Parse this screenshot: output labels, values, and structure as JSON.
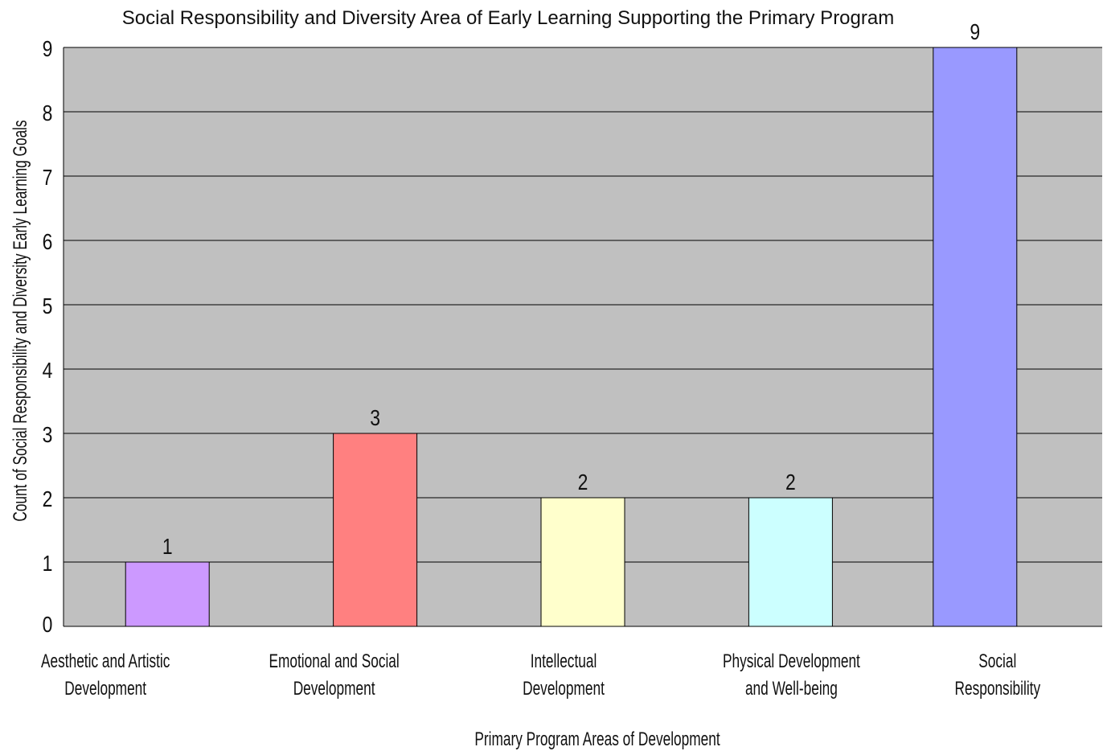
{
  "chart_data": {
    "type": "bar",
    "title": "Social Responsibility and Diversity Area of Early Learning Supporting the Primary Program",
    "xlabel": "Primary Program Areas of Development",
    "ylabel": "Count of Social Responsibility and Diversity Early Learning Goals",
    "categories": [
      [
        "Aesthetic and Artistic",
        "Development"
      ],
      [
        "Emotional and Social",
        "Development"
      ],
      [
        "Intellectual",
        "Development"
      ],
      [
        "Physical Development",
        "and Well-being"
      ],
      [
        "Social",
        "Responsibility"
      ]
    ],
    "values": [
      1,
      3,
      2,
      2,
      9
    ],
    "colors": [
      "#cc99ff",
      "#ff8080",
      "#ffffcc",
      "#ccffff",
      "#9999ff"
    ],
    "data_labels": [
      "1",
      "3",
      "2",
      "2",
      "9"
    ],
    "ylim": [
      0,
      9
    ],
    "yticks": [
      0,
      1,
      2,
      3,
      4,
      5,
      6,
      7,
      8,
      9
    ],
    "grid": true,
    "plot_background": "#c0c0c0",
    "legend": "none"
  }
}
